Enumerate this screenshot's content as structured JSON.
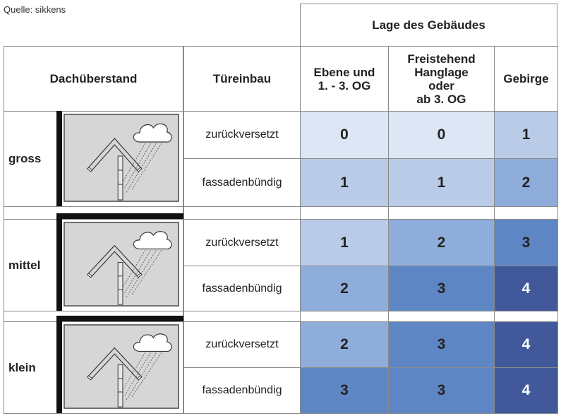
{
  "source": "Quelle: sikkens",
  "table": {
    "group_header": "Lage des Gebäudes",
    "headers": [
      "Dachüberstand",
      "Türeinbau",
      "Ebene und\n1. - 3. OG",
      "Freistehend\nHanglage\noder\nab 3. OG",
      "Gebirge"
    ],
    "rows": [
      {
        "overhang": "gross",
        "doors": [
          {
            "label": "zurückversetzt",
            "values": [
              0,
              0,
              1
            ]
          },
          {
            "label": "fassadenbündig",
            "values": [
              1,
              1,
              2
            ]
          }
        ]
      },
      {
        "overhang": "mittel",
        "doors": [
          {
            "label": "zurückversetzt",
            "values": [
              1,
              2,
              3
            ]
          },
          {
            "label": "fassadenbündig",
            "values": [
              2,
              3,
              4
            ]
          }
        ]
      },
      {
        "overhang": "klein",
        "doors": [
          {
            "label": "zurückversetzt",
            "values": [
              2,
              3,
              4
            ]
          },
          {
            "label": "fassadenbündig",
            "values": [
              3,
              3,
              4
            ]
          }
        ]
      }
    ]
  }
}
